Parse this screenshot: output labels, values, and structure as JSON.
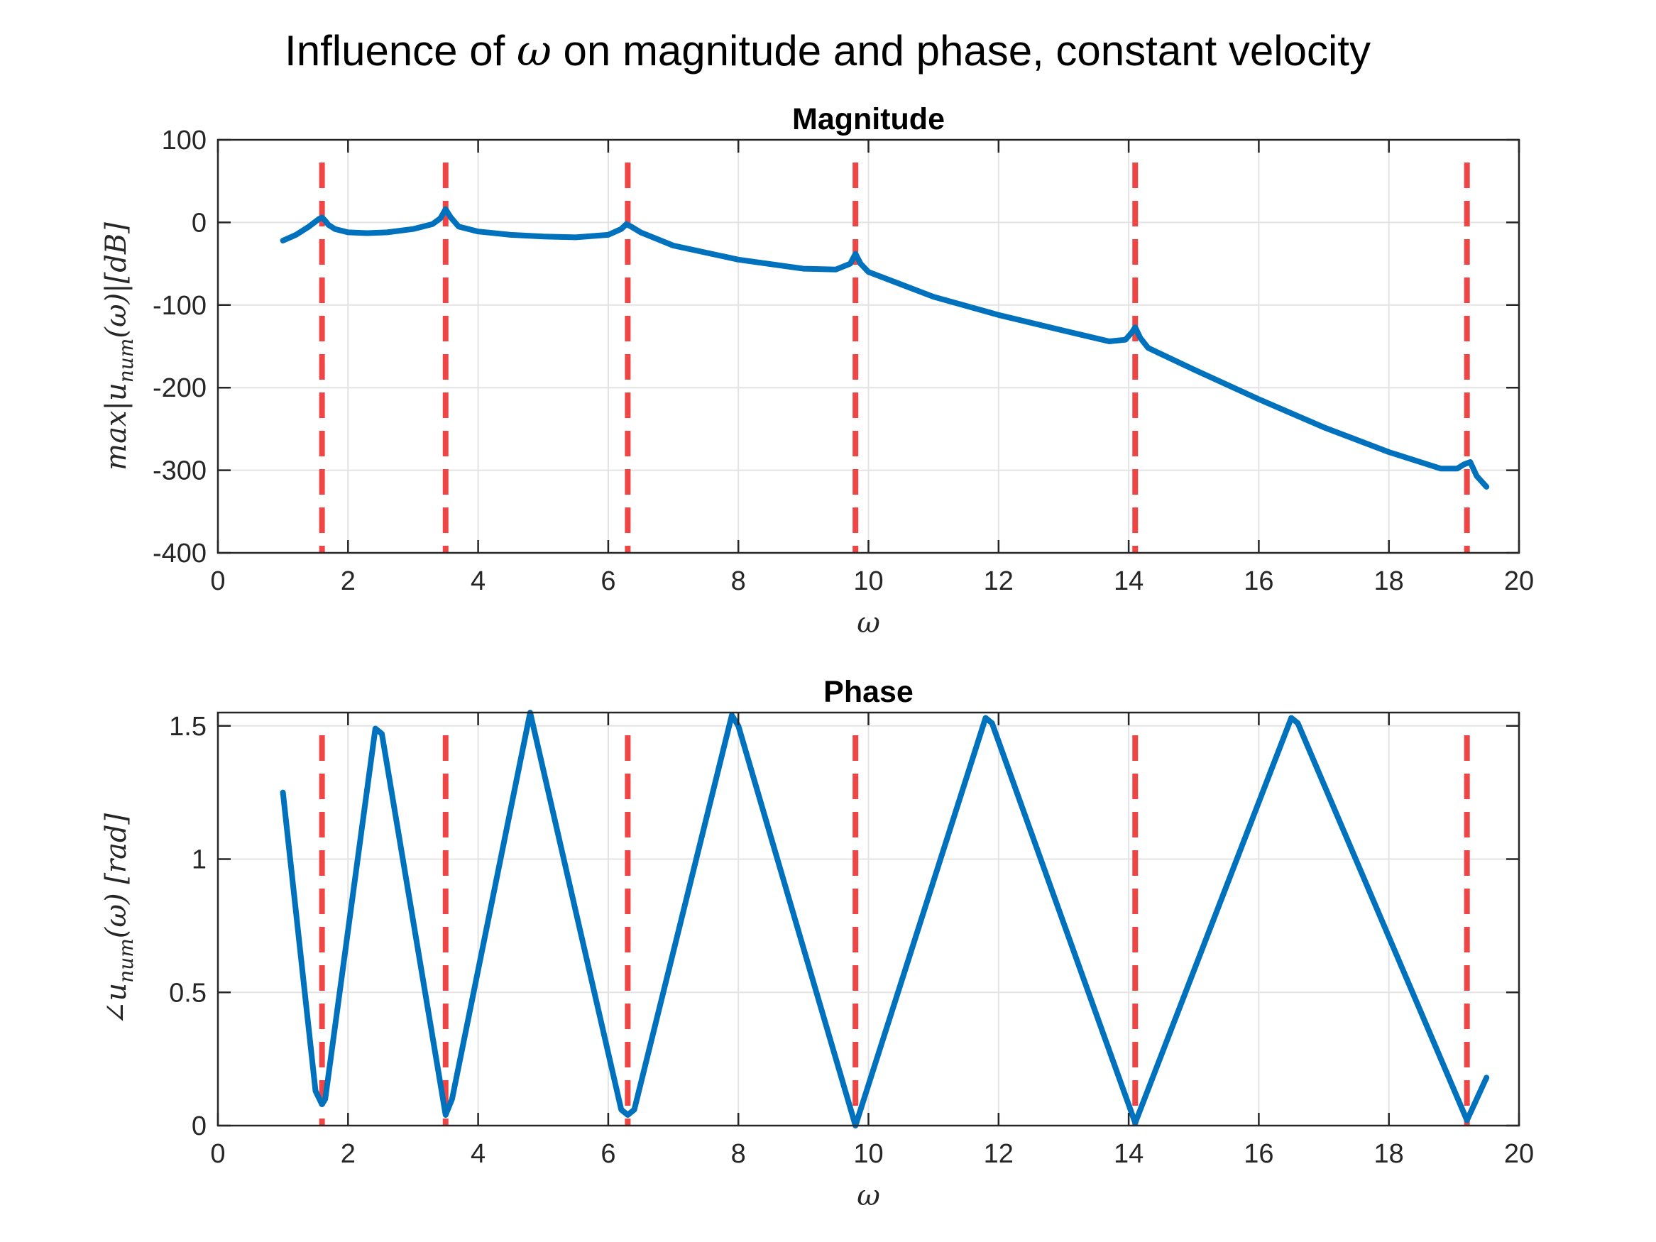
{
  "figure": {
    "suptitle_prefix": "Influence of ",
    "suptitle_symbol": "ω",
    "suptitle_suffix": " on magnitude and phase, constant velocity"
  },
  "colors": {
    "series": "#0072BD",
    "marker_lines": "#F04545"
  },
  "chart_data": [
    {
      "type": "line",
      "title": "Magnitude",
      "xlabel": "ω",
      "ylabel": "max|u_num(ω)|[dB]",
      "ylabel_parts": [
        "max|u",
        "num",
        "(ω)|[dB]"
      ],
      "xlim": [
        0,
        20
      ],
      "ylim": [
        -400,
        100
      ],
      "xticks": [
        0,
        2,
        4,
        6,
        8,
        10,
        12,
        14,
        16,
        18,
        20
      ],
      "xtick_labels": [
        "0",
        "2",
        "4",
        "6",
        "8",
        "10",
        "12",
        "14",
        "16",
        "18",
        "20"
      ],
      "yticks": [
        -400,
        -300,
        -200,
        -100,
        0,
        100
      ],
      "ytick_labels": [
        "-400",
        "-300",
        "-200",
        "-100",
        "0",
        "100"
      ],
      "grid": true,
      "vertical_lines": [
        1.6,
        3.5,
        6.3,
        9.8,
        14.1,
        19.2
      ],
      "series": [
        {
          "x": [
            1.0,
            1.2,
            1.4,
            1.5,
            1.55,
            1.6,
            1.65,
            1.7,
            1.8,
            2.0,
            2.3,
            2.6,
            3.0,
            3.3,
            3.42,
            3.5,
            3.58,
            3.7,
            4.0,
            4.5,
            5.0,
            5.5,
            6.0,
            6.2,
            6.28,
            6.35,
            6.5,
            7.0,
            8.0,
            9.0,
            9.5,
            9.72,
            9.8,
            9.88,
            10.0,
            11.0,
            12.0,
            13.0,
            13.7,
            13.95,
            14.05,
            14.1,
            14.18,
            14.3,
            15.0,
            16.0,
            17.0,
            18.0,
            18.8,
            19.05,
            19.15,
            19.25,
            19.35,
            19.5
          ],
          "y": [
            -22,
            -15,
            -5,
            1,
            4,
            6,
            2,
            -3,
            -8,
            -12,
            -13,
            -12,
            -8,
            -2,
            5,
            16,
            6,
            -5,
            -11,
            -15,
            -17,
            -18,
            -15,
            -8,
            -2,
            -5,
            -12,
            -28,
            -45,
            -56,
            -57,
            -50,
            -38,
            -50,
            -60,
            -90,
            -112,
            -131,
            -144,
            -142,
            -133,
            -127,
            -140,
            -152,
            -178,
            -214,
            -248,
            -278,
            -298,
            -298,
            -293,
            -290,
            -307,
            -320
          ]
        }
      ]
    },
    {
      "type": "line",
      "title": "Phase",
      "xlabel": "ω",
      "ylabel": "∠u_num(ω) [rad]",
      "ylabel_parts": [
        "∠u",
        "num",
        "(ω) [rad]"
      ],
      "xlim": [
        0,
        20
      ],
      "ylim": [
        0,
        1.55
      ],
      "xticks": [
        0,
        2,
        4,
        6,
        8,
        10,
        12,
        14,
        16,
        18,
        20
      ],
      "xtick_labels": [
        "0",
        "2",
        "4",
        "6",
        "8",
        "10",
        "12",
        "14",
        "16",
        "18",
        "20"
      ],
      "yticks": [
        0,
        0.5,
        1,
        1.5
      ],
      "ytick_labels": [
        "0",
        "0.5",
        "1",
        "1.5"
      ],
      "grid": true,
      "vertical_lines": [
        1.6,
        3.5,
        6.3,
        9.8,
        14.1,
        19.2
      ],
      "series": [
        {
          "x": [
            1.0,
            1.5,
            1.6,
            1.65,
            2.42,
            2.52,
            3.5,
            3.6,
            4.8,
            6.2,
            6.3,
            6.4,
            7.9,
            8.0,
            9.8,
            11.8,
            11.9,
            14.1,
            16.5,
            16.6,
            19.2,
            19.5
          ],
          "y": [
            1.25,
            0.13,
            0.08,
            0.1,
            1.49,
            1.47,
            0.04,
            0.1,
            1.55,
            0.06,
            0.04,
            0.06,
            1.54,
            1.5,
            0.0,
            1.53,
            1.51,
            0.01,
            1.53,
            1.51,
            0.02,
            0.18
          ]
        }
      ]
    }
  ]
}
